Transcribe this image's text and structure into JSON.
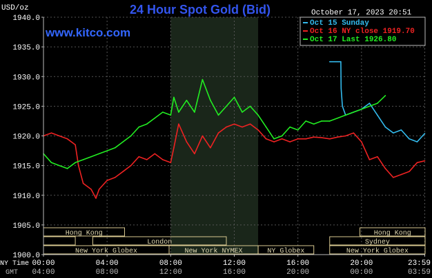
{
  "header": {
    "unit": "USD/oz",
    "title": "24 Hour Spot Gold (Bid)",
    "timestamp": "October 17, 2023 20:51",
    "website": "www.kitco.com"
  },
  "legend": [
    {
      "label": "Oct 15 Sunday",
      "color": "#33bbee"
    },
    {
      "label": "Oct 16 NY close 1919.70",
      "color": "#ee2222"
    },
    {
      "label": "Oct 17 Last 1926.80",
      "color": "#22ee22"
    }
  ],
  "sessions": {
    "row1": [
      {
        "label": "Hong Kong",
        "start": 0.0,
        "end": 5.1
      },
      {
        "label": "Hong Kong",
        "start": 19.9,
        "end": 24.0
      }
    ],
    "row2": [
      {
        "label": "",
        "start": 0.0,
        "end": 2.0
      },
      {
        "label": "London",
        "start": 3.1,
        "end": 11.5
      },
      {
        "label": "Sydney",
        "start": 18.0,
        "end": 24.0
      }
    ],
    "row3": [
      {
        "label": "New York Globex",
        "start": 0.0,
        "end": 7.9
      },
      {
        "label": "New York NYMEX",
        "start": 7.9,
        "end": 13.5
      },
      {
        "label": "NY Globex",
        "start": 13.5,
        "end": 17.0
      },
      {
        "label": "New York Globex",
        "start": 18.0,
        "end": 24.0
      }
    ]
  },
  "axis_labels": {
    "ny_time": "NY Time",
    "gmt": "GMT"
  },
  "chart_data": {
    "type": "line",
    "ylabel": "USD/oz",
    "ylim": [
      1900,
      1940
    ],
    "yticks": [
      "1900.0",
      "1905.0",
      "1910.0",
      "1915.0",
      "1920.0",
      "1925.0",
      "1930.0",
      "1935.0",
      "1940.0"
    ],
    "xlim": [
      0,
      24
    ],
    "xticks": [
      0,
      4,
      8,
      12,
      16,
      20,
      23.98
    ],
    "xtick_labels_ny": [
      "00:00",
      "04:00",
      "08:00",
      "12:00",
      "16:00",
      "20:00",
      "23:59"
    ],
    "xtick_labels_gmt": [
      "04:00",
      "08:00",
      "12:00",
      "16:00",
      "20:00",
      "00:00",
      "03:59"
    ],
    "shaded_region": [
      8.0,
      13.5
    ],
    "grid": true,
    "series": [
      {
        "name": "Oct 15 Sunday",
        "color": "#33bbee",
        "x": [
          18.0,
          18.7,
          18.72,
          18.8,
          19.0,
          19.5,
          20.0,
          20.5,
          21.0,
          21.5,
          22.0,
          22.5,
          23.0,
          23.5,
          23.98
        ],
        "y": [
          1932.5,
          1932.5,
          1928.0,
          1925.0,
          1923.5,
          1924.0,
          1924.5,
          1925.5,
          1923.5,
          1921.5,
          1920.5,
          1921.0,
          1919.5,
          1919.0,
          1920.4
        ]
      },
      {
        "name": "Oct 16 NY close 1919.70",
        "color": "#ee2222",
        "x": [
          0.0,
          0.5,
          1.0,
          1.5,
          2.0,
          2.2,
          2.5,
          3.0,
          3.3,
          3.5,
          4.0,
          4.5,
          5.0,
          5.5,
          6.0,
          6.5,
          7.0,
          7.5,
          8.0,
          8.2,
          8.5,
          9.0,
          9.5,
          10.0,
          10.5,
          11.0,
          11.5,
          12.0,
          12.5,
          13.0,
          13.5,
          14.0,
          14.5,
          15.0,
          15.5,
          16.0,
          16.5,
          17.0,
          17.5,
          18.0,
          18.5,
          19.0,
          19.5,
          20.0,
          20.5,
          21.0,
          21.5,
          22.0,
          22.5,
          23.0,
          23.5,
          23.98
        ],
        "y": [
          1920.0,
          1920.5,
          1920.0,
          1919.5,
          1918.5,
          1915.0,
          1912.0,
          1911.0,
          1909.5,
          1911.0,
          1912.5,
          1913.0,
          1914.0,
          1915.0,
          1916.5,
          1916.0,
          1917.0,
          1916.0,
          1915.5,
          1918.0,
          1922.0,
          1919.0,
          1917.0,
          1920.0,
          1918.0,
          1920.5,
          1921.5,
          1922.0,
          1921.5,
          1922.0,
          1921.0,
          1919.5,
          1919.0,
          1919.5,
          1919.0,
          1919.5,
          1919.5,
          1919.8,
          1919.7,
          1919.5,
          1919.8,
          1920.0,
          1920.5,
          1919.0,
          1916.0,
          1916.5,
          1914.5,
          1913.0,
          1913.5,
          1914.0,
          1915.5,
          1915.8
        ]
      },
      {
        "name": "Oct 17 Last 1926.80",
        "color": "#22ee22",
        "x": [
          0.0,
          0.5,
          1.0,
          1.5,
          2.0,
          2.5,
          3.0,
          3.5,
          4.0,
          4.5,
          5.0,
          5.5,
          6.0,
          6.5,
          7.0,
          7.5,
          8.0,
          8.2,
          8.5,
          9.0,
          9.5,
          10.0,
          10.5,
          11.0,
          11.5,
          12.0,
          12.5,
          13.0,
          13.5,
          14.0,
          14.5,
          15.0,
          15.5,
          16.0,
          16.5,
          17.0,
          17.5,
          18.0,
          18.5,
          19.0,
          19.5,
          20.0,
          20.5,
          21.0,
          21.5
        ],
        "y": [
          1917.0,
          1915.5,
          1915.0,
          1914.5,
          1915.5,
          1916.0,
          1916.5,
          1917.0,
          1917.5,
          1918.0,
          1919.0,
          1920.0,
          1921.5,
          1922.0,
          1923.0,
          1924.0,
          1923.5,
          1926.5,
          1924.0,
          1926.0,
          1924.0,
          1929.5,
          1926.0,
          1923.5,
          1925.0,
          1926.5,
          1924.0,
          1925.0,
          1923.5,
          1921.5,
          1919.5,
          1920.0,
          1921.5,
          1921.0,
          1922.5,
          1922.0,
          1922.5,
          1922.5,
          1923.0,
          1923.5,
          1924.0,
          1924.5,
          1925.0,
          1925.5,
          1926.8
        ]
      }
    ]
  }
}
